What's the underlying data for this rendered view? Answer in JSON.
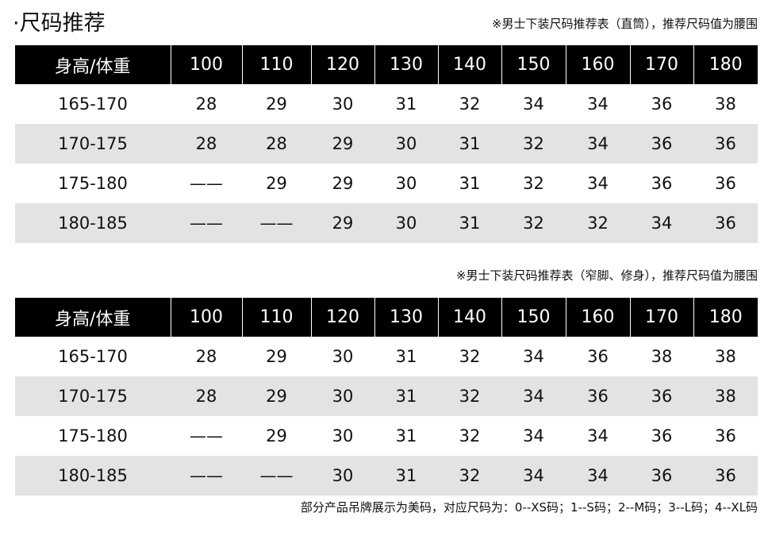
{
  "title": "·尺码推荐",
  "tables": [
    {
      "note": "※男士下装尺码推荐表（直筒），推荐尺码值为腰围",
      "header": [
        "身高/体重",
        "100",
        "110",
        "120",
        "130",
        "140",
        "150",
        "160",
        "170",
        "180"
      ],
      "rows": [
        [
          "165-170",
          "28",
          "29",
          "30",
          "31",
          "32",
          "34",
          "34",
          "36",
          "38"
        ],
        [
          "170-175",
          "28",
          "28",
          "29",
          "30",
          "31",
          "32",
          "34",
          "36",
          "36"
        ],
        [
          "175-180",
          "——",
          "29",
          "29",
          "30",
          "31",
          "32",
          "34",
          "36",
          "36"
        ],
        [
          "180-185",
          "——",
          "——",
          "29",
          "30",
          "31",
          "32",
          "32",
          "34",
          "36"
        ]
      ]
    },
    {
      "note": "※男士下装尺码推荐表（窄脚、修身），推荐尺码值为腰围",
      "header": [
        "身高/体重",
        "100",
        "110",
        "120",
        "130",
        "140",
        "150",
        "160",
        "170",
        "180"
      ],
      "rows": [
        [
          "165-170",
          "28",
          "29",
          "30",
          "31",
          "32",
          "34",
          "36",
          "38",
          "38"
        ],
        [
          "170-175",
          "28",
          "29",
          "30",
          "31",
          "32",
          "34",
          "36",
          "36",
          "38"
        ],
        [
          "175-180",
          "——",
          "29",
          "30",
          "31",
          "32",
          "34",
          "34",
          "36",
          "36"
        ],
        [
          "180-185",
          "——",
          "——",
          "30",
          "31",
          "32",
          "34",
          "34",
          "36",
          "36"
        ]
      ]
    }
  ],
  "footer": "部分产品吊牌展示为美码，对应尺码为：0--XS码；1--S码；2--M码；3--L码；4--XL码"
}
